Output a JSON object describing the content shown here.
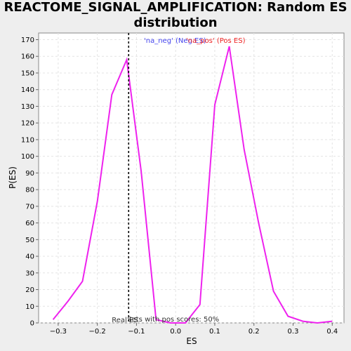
{
  "chart_data": {
    "type": "line",
    "title_line1": "REACTOME_SIGNAL_AMPLIFICATION: Random ES",
    "title_line2": "distribution",
    "xlabel": "ES",
    "ylabel": "P(ES)",
    "xlim": [
      -0.35,
      0.43
    ],
    "ylim": [
      0,
      174
    ],
    "xticks": [
      -0.3,
      -0.2,
      -0.1,
      0.0,
      0.1,
      0.2,
      0.3,
      0.4
    ],
    "xtick_labels": [
      "−0.3",
      "−0.2",
      "−0.1",
      "0.0",
      "0.1",
      "0.2",
      "0.3",
      "0.4"
    ],
    "yticks": [
      0,
      10,
      20,
      30,
      40,
      50,
      60,
      70,
      80,
      90,
      100,
      110,
      120,
      130,
      140,
      150,
      160,
      170
    ],
    "grid": true,
    "series": [
      {
        "name": "'na_neg' (Neg ES)",
        "color": "#4444ee",
        "x": [],
        "y": []
      },
      {
        "name": "'na_pos' (Pos ES)",
        "color": "#ee2222",
        "x": [],
        "y": []
      },
      {
        "name": "",
        "color": "#ee22ee",
        "x": [
          -0.313,
          -0.275,
          -0.238,
          -0.2,
          -0.163,
          -0.125,
          -0.088,
          -0.05,
          -0.013,
          0.025,
          0.062,
          0.1,
          0.137,
          0.175,
          0.212,
          0.25,
          0.287,
          0.325,
          0.362,
          0.4
        ],
        "y": [
          2,
          13,
          25,
          73,
          137,
          158,
          91,
          2,
          0,
          0,
          11,
          131,
          166,
          104,
          60,
          19,
          4,
          1,
          0,
          1
        ]
      }
    ],
    "real_es_line": {
      "x": -0.12,
      "label": "Real ES"
    },
    "annotation": "Sets with pos scores: 50%"
  }
}
